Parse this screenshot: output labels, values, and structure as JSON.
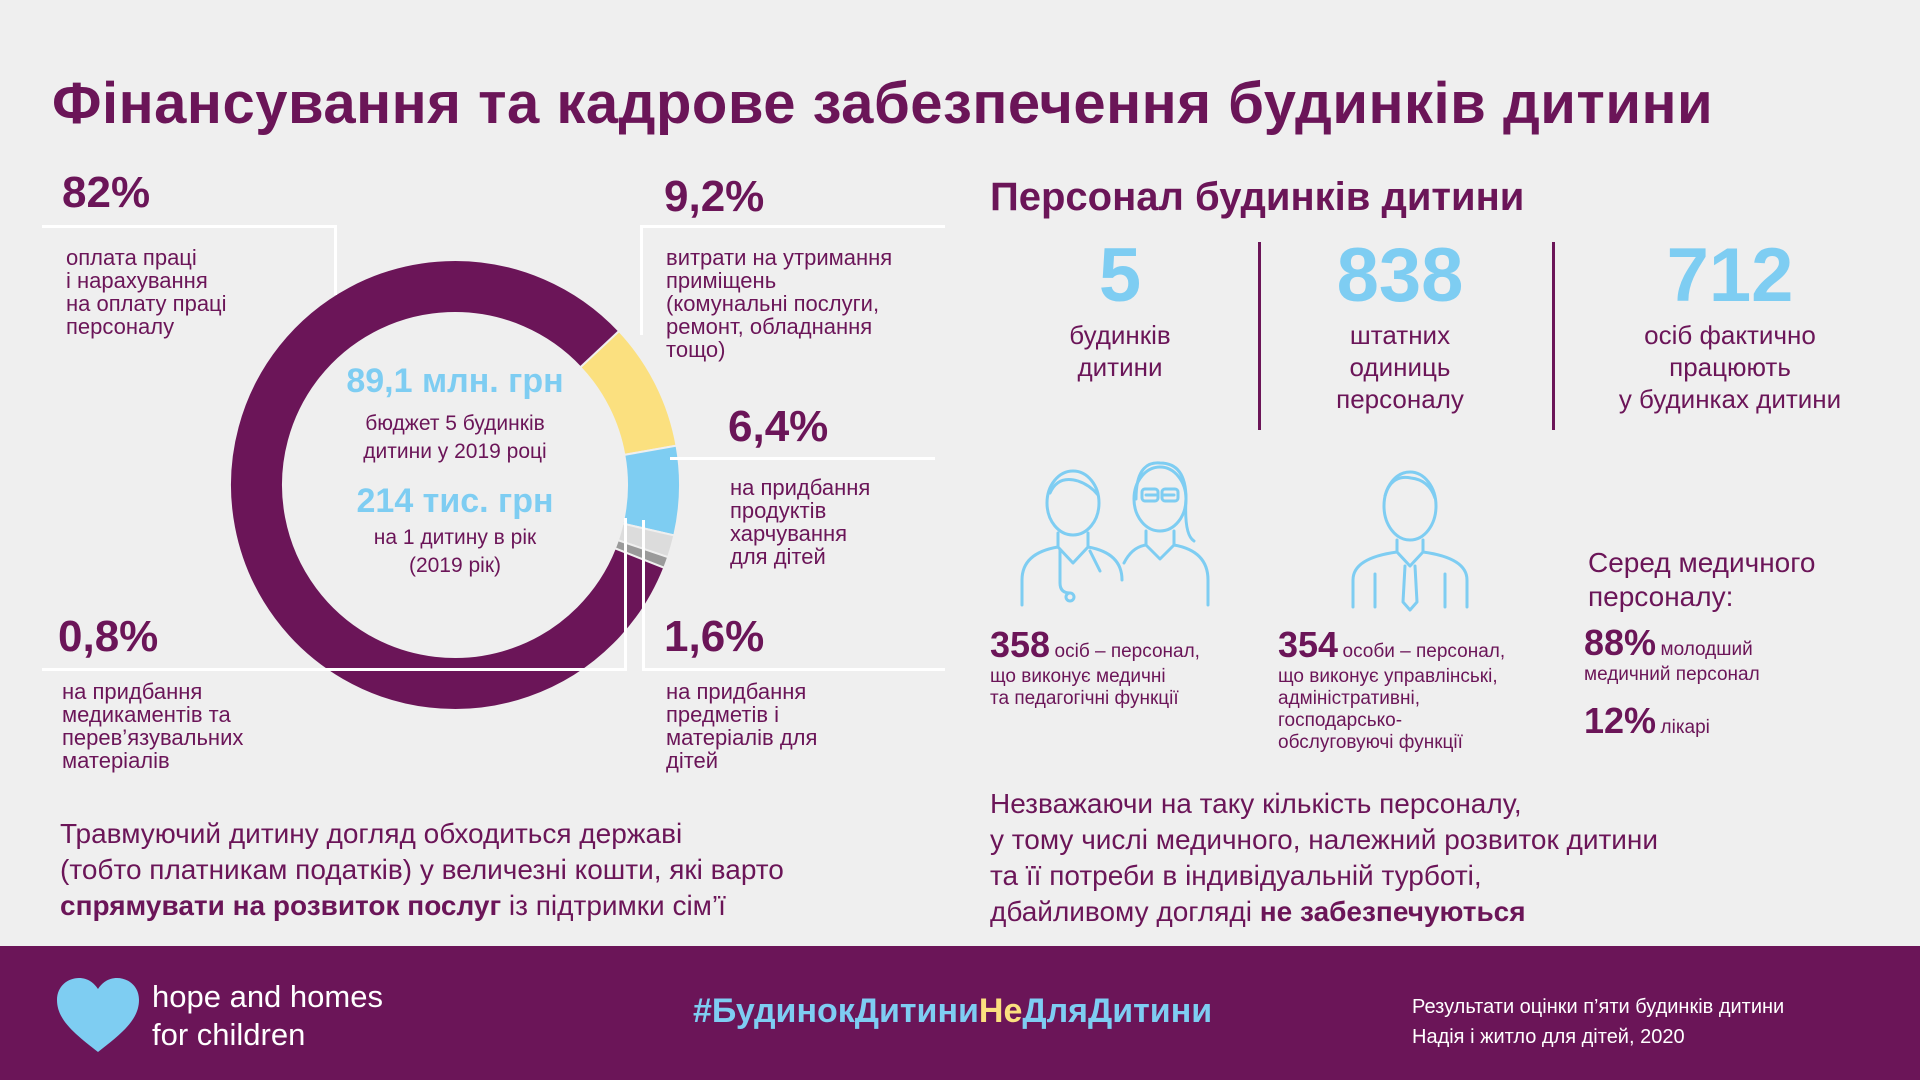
{
  "title": "Фінансування та кадрове забезпечення будинків дитини",
  "chart_data": {
    "type": "pie",
    "center": {
      "budget_value": "89,1 млн. грн",
      "budget_label_1": "бюджет 5 будинків",
      "budget_label_2": "дитини у 2019 році",
      "per_child_value": "214 тис. грн",
      "per_child_label_1": "на 1 дитину в рік",
      "per_child_label_2": "(2019 рік)"
    },
    "slices": [
      {
        "value": 82,
        "pct": "82%",
        "label": [
          "оплата праці",
          "і нарахування",
          "на оплату праці",
          "персоналу"
        ]
      },
      {
        "value": 9.2,
        "pct": "9,2%",
        "label": [
          "витрати на утримання",
          "приміщень",
          "(комунальні послуги,",
          "ремонт, обладнання",
          "тощо)"
        ]
      },
      {
        "value": 6.4,
        "pct": "6,4%",
        "label": [
          "на придбання",
          "продуктів",
          "харчування",
          "для дітей"
        ]
      },
      {
        "value": 1.6,
        "pct": "1,6%",
        "label": [
          "на придбання",
          "предметів і",
          "матеріалів для",
          "дітей"
        ]
      },
      {
        "value": 0.8,
        "pct": "0,8%",
        "label": [
          "на придбання",
          "медикаментів та",
          "перев’язувальних",
          "матеріалів"
        ]
      }
    ],
    "colors": [
      "#6b1558",
      "#fbe07f",
      "#7ecdf2",
      "#dcdcdc",
      "#9a9a9a"
    ]
  },
  "staff": {
    "title": "Персонал будинків дитини",
    "stats": [
      {
        "value": "5",
        "label": [
          "будинків",
          "дитини"
        ]
      },
      {
        "value": "838",
        "label": [
          "штатних",
          "одиниць",
          "персоналу"
        ]
      },
      {
        "value": "712",
        "label": [
          "осіб фактично",
          "працюють",
          "у будинках дитини"
        ]
      }
    ],
    "medical": {
      "value": "358",
      "text_1": "осіб – персонал,",
      "text_2": "що виконує медичні",
      "text_3": "та педагогічні функції"
    },
    "admin": {
      "value": "354",
      "text_1": "особи – персонал,",
      "text_2": "що виконує управлінські,",
      "text_3": "адміністративні,",
      "text_4": "господарсько-",
      "text_5": "обслуговуючі функції"
    },
    "among": {
      "title_1": "Серед медичного",
      "title_2": "персоналу:",
      "junior_value": "88%",
      "junior_1": "молодший",
      "junior_2": "медичний персонал",
      "doctors_value": "12%",
      "doctors_label": "лікарі"
    }
  },
  "bottom_left": {
    "line1": "Травмуючий дитину догляд обходиться державі",
    "line2": "(тобто платникам податків) у величезні кошти, які варто",
    "line3_bold": "спрямувати на розвиток послуг",
    "line3_rest": " із підтримки сім’ї"
  },
  "bottom_right": {
    "line1": "Незважаючи на таку кількість персоналу,",
    "line2": "у тому числі медичного, належний розвиток дитини",
    "line3": "та її потреби в індивідуальній турботі,",
    "line4_rest": "дбайливому догляді ",
    "line4_bold": "не забезпечуються"
  },
  "footer": {
    "logo_1": "hope and homes",
    "logo_2": "for children",
    "hashtag_parts": [
      "#БудинокДитини",
      "Не",
      "ДляДитини"
    ],
    "hashtag_colors": [
      "#7ecdf2",
      "#fbe07f",
      "#7ecdf2"
    ],
    "source_1": "Результати оцінки п’яти будинків дитини",
    "source_2": "Надія і житло для дітей, 2020"
  }
}
